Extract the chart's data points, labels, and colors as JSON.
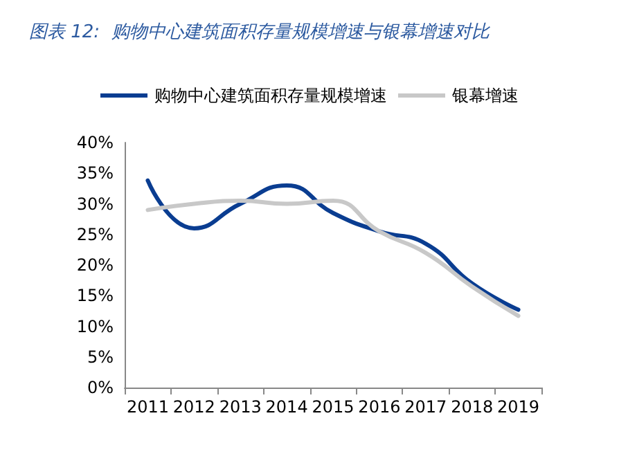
{
  "chart_data": {
    "type": "line",
    "title": "图表 12:  购物中心建筑面积存量规模增速与银幕增速对比",
    "categories": [
      "2011",
      "2012",
      "2013",
      "2014",
      "2015",
      "2016",
      "2017",
      "2018",
      "2019"
    ],
    "series": [
      {
        "name": "购物中心建筑面积存量规模增速",
        "color": "#0a3d91",
        "values": [
          33.8,
          26,
          30,
          33,
          28.5,
          25.5,
          23.5,
          17,
          12.7
        ]
      },
      {
        "name": "银幕增速",
        "color": "#c8c8c8",
        "values": [
          29,
          30,
          30.5,
          30,
          30.5,
          25.5,
          22,
          16.5,
          11.7
        ]
      }
    ],
    "ylim": [
      0,
      40
    ],
    "yticks": [
      {
        "value": 0,
        "label": "0%"
      },
      {
        "value": 5,
        "label": "5%"
      },
      {
        "value": 10,
        "label": "10%"
      },
      {
        "value": 15,
        "label": "15%"
      },
      {
        "value": 20,
        "label": "20%"
      },
      {
        "value": 25,
        "label": "25%"
      },
      {
        "value": 30,
        "label": "30%"
      },
      {
        "value": 35,
        "label": "35%"
      },
      {
        "value": 40,
        "label": "40%"
      }
    ],
    "grid": false,
    "legend": "top",
    "marker": "none",
    "line_style": "solid"
  }
}
